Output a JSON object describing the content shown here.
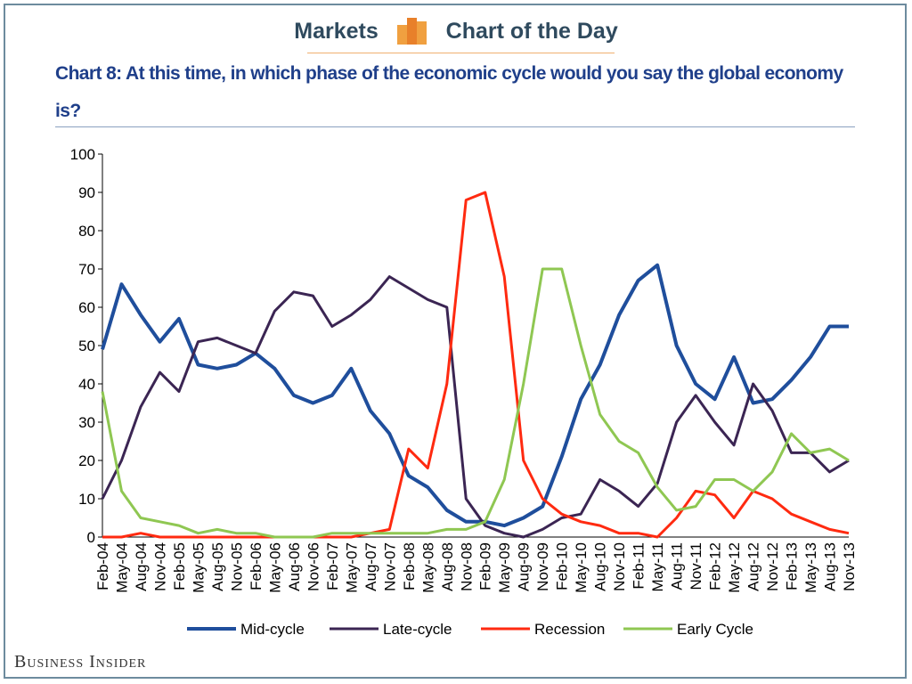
{
  "header": {
    "left": "Markets",
    "right": "Chart of the Day"
  },
  "footer": "Business Insider",
  "chart_data": {
    "type": "line",
    "title": "Chart 8: At this time, in which phase of the economic cycle would you say the global economy is?",
    "categories": [
      "Feb-04",
      "May-04",
      "Aug-04",
      "Nov-04",
      "Feb-05",
      "May-05",
      "Aug-05",
      "Nov-05",
      "Feb-06",
      "May-06",
      "Aug-06",
      "Nov-06",
      "Feb-07",
      "May-07",
      "Aug-07",
      "Nov-07",
      "Feb-08",
      "May-08",
      "Aug-08",
      "Nov-08",
      "Feb-09",
      "May-09",
      "Aug-09",
      "Nov-09",
      "Feb-10",
      "May-10",
      "Aug-10",
      "Nov-10",
      "Feb-11",
      "May-11",
      "Aug-11",
      "Nov-11",
      "Feb-12",
      "May-12",
      "Aug-12",
      "Nov-12",
      "Feb-13",
      "May-13",
      "Aug-13",
      "Nov-13"
    ],
    "series": [
      {
        "name": "Mid-cycle",
        "color": "#1f4e9c",
        "values": [
          49,
          66,
          58,
          51,
          57,
          45,
          44,
          45,
          48,
          44,
          37,
          35,
          37,
          44,
          33,
          27,
          16,
          13,
          7,
          4,
          4,
          3,
          5,
          8,
          21,
          36,
          45,
          58,
          67,
          71,
          50,
          40,
          36,
          47,
          35,
          36,
          41,
          47,
          55,
          55
        ]
      },
      {
        "name": "Late-cycle",
        "color": "#3b2553",
        "values": [
          10,
          20,
          34,
          43,
          38,
          51,
          52,
          50,
          48,
          59,
          64,
          63,
          55,
          58,
          62,
          68,
          65,
          62,
          60,
          10,
          3,
          1,
          0,
          2,
          5,
          6,
          15,
          12,
          8,
          14,
          30,
          37,
          30,
          24,
          40,
          33,
          22,
          22,
          17,
          20
        ]
      },
      {
        "name": "Recession",
        "color": "#ff2a10",
        "values": [
          0,
          0,
          1,
          0,
          0,
          0,
          0,
          0,
          0,
          0,
          0,
          0,
          0,
          0,
          1,
          2,
          23,
          18,
          40,
          88,
          90,
          68,
          20,
          10,
          6,
          4,
          3,
          1,
          1,
          0,
          5,
          12,
          11,
          5,
          12,
          10,
          6,
          4,
          2,
          1
        ]
      },
      {
        "name": "Early Cycle",
        "color": "#8fc752",
        "values": [
          38,
          12,
          5,
          4,
          3,
          1,
          2,
          1,
          1,
          0,
          0,
          0,
          1,
          1,
          1,
          1,
          1,
          1,
          2,
          2,
          4,
          15,
          40,
          70,
          70,
          50,
          32,
          25,
          22,
          13,
          7,
          8,
          15,
          15,
          12,
          17,
          27,
          22,
          23,
          20
        ]
      }
    ],
    "ylim": [
      0,
      100
    ],
    "yticks": [
      0,
      10,
      20,
      30,
      40,
      50,
      60,
      70,
      80,
      90,
      100
    ],
    "legend": "bottom"
  }
}
